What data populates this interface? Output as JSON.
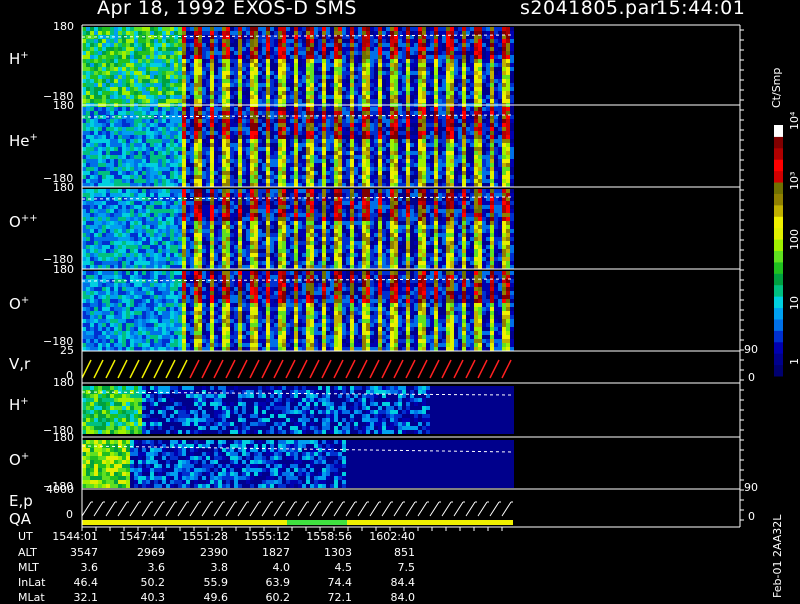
{
  "header": {
    "title": "Apr 18, 1992    EXOS-D SMS",
    "file": "s2041805.par",
    "time": "15:44:01"
  },
  "colorbar": {
    "label": "Ct/Smp",
    "ticks": [
      "1",
      "10",
      "100",
      "10³",
      "10⁴"
    ],
    "colors": [
      "#000070",
      "#00008c",
      "#0000b0",
      "#0030d0",
      "#0070e8",
      "#00a0f0",
      "#00d0e0",
      "#00c080",
      "#00a040",
      "#20c020",
      "#60e020",
      "#a0f000",
      "#e0f000",
      "#f0f000",
      "#c0b000",
      "#908000",
      "#707000",
      "#d00000",
      "#ff0000",
      "#b00000",
      "#800000",
      "#ffffff"
    ]
  },
  "panels": [
    {
      "ion": "H",
      "charge": "+",
      "top": "180",
      "bottom": "−180"
    },
    {
      "ion": "He",
      "charge": "+",
      "top": "180",
      "bottom": "−180"
    },
    {
      "ion": "O",
      "charge": "++",
      "top": "180",
      "bottom": "−180"
    },
    {
      "ion": "O",
      "charge": "+",
      "top": "180",
      "bottom": "−180"
    }
  ],
  "vr_panel": {
    "label": "V,r",
    "top": "25",
    "bottom": "0",
    "right_top": "90",
    "right_bottom": "0"
  },
  "panels_low": [
    {
      "ion": "H",
      "charge": "+",
      "top": "180",
      "bottom": "−180"
    },
    {
      "ion": "O",
      "charge": "+",
      "top": "180",
      "bottom": "−180"
    }
  ],
  "ep_panel": {
    "label1": "E,p",
    "label2": "QA",
    "top": "4000",
    "bottom": "0",
    "right_top": "90",
    "right_bottom": "0"
  },
  "ephemeris": {
    "rows": [
      {
        "name": "UT",
        "values": [
          "1544:01",
          "1547:44",
          "1551:28",
          "1555:12",
          "1558:56",
          "1602:40"
        ]
      },
      {
        "name": "ALT",
        "values": [
          "3547",
          "2969",
          "2390",
          "1827",
          "1303",
          "851"
        ]
      },
      {
        "name": "MLT",
        "values": [
          "3.6",
          "3.6",
          "3.8",
          "4.0",
          "4.5",
          "7.5"
        ]
      },
      {
        "name": "InLat",
        "values": [
          "46.4",
          "50.2",
          "55.9",
          "63.9",
          "74.4",
          "84.4"
        ]
      },
      {
        "name": "MLat",
        "values": [
          "32.1",
          "40.3",
          "49.6",
          "60.2",
          "72.1",
          "84.0"
        ]
      }
    ]
  },
  "footer": {
    "date": "Feb-01 2AA32L"
  }
}
